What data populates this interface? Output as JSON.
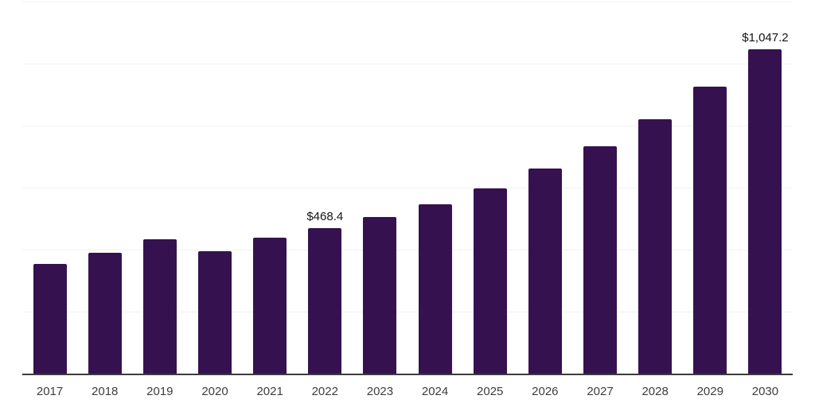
{
  "chart_data": {
    "type": "bar",
    "categories": [
      "2017",
      "2018",
      "2019",
      "2020",
      "2021",
      "2022",
      "2023",
      "2024",
      "2025",
      "2026",
      "2027",
      "2028",
      "2029",
      "2030"
    ],
    "values": [
      352.6,
      388.6,
      432.3,
      393.7,
      437.5,
      468.4,
      504.4,
      545.6,
      597.1,
      661.4,
      733.4,
      820.9,
      926.5,
      1047.2
    ],
    "annotations": [
      {
        "category": "2022",
        "text": "$468.4"
      },
      {
        "category": "2030",
        "text": "$1,047.2"
      }
    ],
    "ylim": [
      0,
      1200
    ],
    "grid_step": 200,
    "grid": true,
    "legend_position": "none",
    "colors": {
      "bar": "#35124F",
      "gridline": "#f2f2f2",
      "axis_line": "#3c3c3c",
      "tick_label": "#3d3d3d",
      "annotation": "#141414",
      "background": "#ffffff"
    }
  }
}
